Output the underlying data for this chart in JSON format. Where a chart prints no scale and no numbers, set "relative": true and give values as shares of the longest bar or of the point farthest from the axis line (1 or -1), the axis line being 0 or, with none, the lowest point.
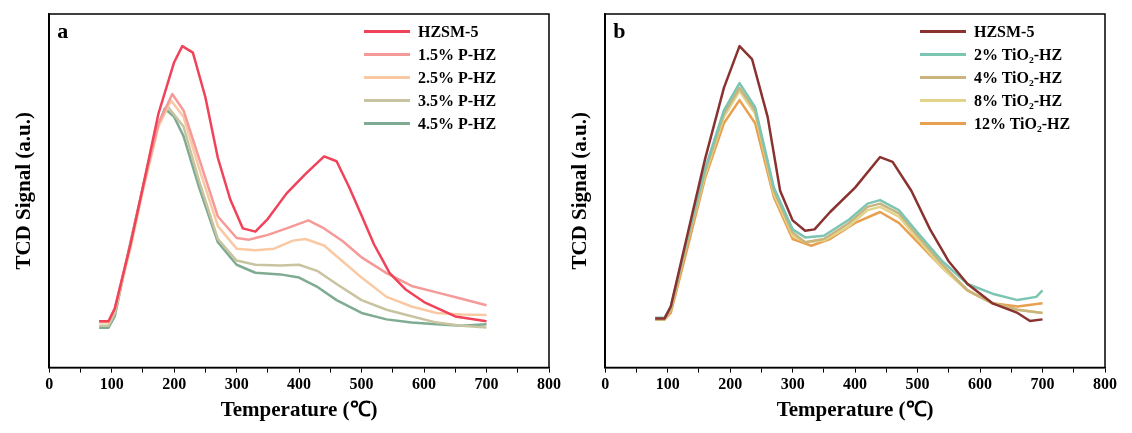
{
  "chart_data": [
    {
      "type": "line",
      "relative": true,
      "xlabel": "Temperature (℃)",
      "ylabel": "TCD Signal (a.u.)",
      "annotations": [
        "a"
      ],
      "xlim": [
        0,
        800
      ],
      "xticks": [
        0,
        {
          "value": 50,
          "label": null
        },
        100,
        {
          "value": 150,
          "label": null
        },
        200,
        {
          "value": 250,
          "label": null
        },
        300,
        {
          "value": 350,
          "label": null
        },
        400,
        {
          "value": 450,
          "label": null
        },
        500,
        {
          "value": 550,
          "label": null
        },
        600,
        {
          "value": 650,
          "label": null
        },
        700,
        {
          "value": 750,
          "label": null
        },
        800
      ],
      "grid": false,
      "legend": "top right",
      "marker": "none",
      "line_style": "solid",
      "series": [
        {
          "name": "HZSM-5",
          "color": "#f0435a",
          "x": [
            80,
            95,
            105,
            130,
            150,
            175,
            200,
            213,
            230,
            250,
            270,
            290,
            310,
            330,
            350,
            380,
            410,
            440,
            460,
            480,
            500,
            520,
            545,
            570,
            600,
            650,
            700
          ],
          "values": [
            0.144,
            0.144,
            0.184,
            0.383,
            0.562,
            0.791,
            0.95,
            1.0,
            0.98,
            0.841,
            0.652,
            0.522,
            0.433,
            0.423,
            0.463,
            0.542,
            0.602,
            0.657,
            0.642,
            0.562,
            0.473,
            0.383,
            0.294,
            0.244,
            0.204,
            0.159,
            0.144
          ]
        },
        {
          "name": "1.5% P-HZ",
          "color": "#f59a98",
          "x": [
            80,
            95,
            105,
            130,
            150,
            175,
            197,
            215,
            240,
            270,
            300,
            320,
            350,
            380,
            415,
            440,
            470,
            500,
            540,
            580,
            620,
            660,
            700
          ],
          "values": [
            0.144,
            0.144,
            0.184,
            0.383,
            0.56,
            0.76,
            0.851,
            0.8,
            0.65,
            0.47,
            0.403,
            0.398,
            0.413,
            0.433,
            0.458,
            0.433,
            0.393,
            0.343,
            0.294,
            0.254,
            0.234,
            0.214,
            0.194
          ]
        },
        {
          "name": "2.5% P-HZ",
          "color": "#f9c9a3",
          "x": [
            80,
            95,
            105,
            130,
            150,
            175,
            195,
            215,
            240,
            270,
            300,
            330,
            360,
            390,
            410,
            440,
            470,
            500,
            540,
            580,
            620,
            660,
            700
          ],
          "values": [
            0.14,
            0.14,
            0.18,
            0.37,
            0.55,
            0.75,
            0.831,
            0.78,
            0.62,
            0.44,
            0.37,
            0.365,
            0.37,
            0.395,
            0.4,
            0.38,
            0.33,
            0.28,
            0.22,
            0.19,
            0.17,
            0.165,
            0.164
          ]
        },
        {
          "name": "3.5% P-HZ",
          "color": "#c8c4a0",
          "x": [
            80,
            95,
            105,
            130,
            150,
            170,
            190,
            215,
            240,
            270,
            300,
            330,
            370,
            400,
            430,
            460,
            500,
            540,
            580,
            620,
            660,
            700
          ],
          "values": [
            0.13,
            0.13,
            0.17,
            0.38,
            0.56,
            0.74,
            0.811,
            0.75,
            0.58,
            0.4,
            0.333,
            0.32,
            0.318,
            0.32,
            0.3,
            0.26,
            0.21,
            0.18,
            0.16,
            0.14,
            0.13,
            0.125
          ]
        },
        {
          "name": "4.5% P-HZ",
          "color": "#7fab93",
          "x": [
            80,
            95,
            105,
            130,
            150,
            170,
            185,
            200,
            215,
            240,
            270,
            300,
            330,
            370,
            400,
            430,
            460,
            500,
            540,
            580,
            620,
            660,
            700
          ],
          "values": [
            0.124,
            0.124,
            0.16,
            0.39,
            0.56,
            0.73,
            0.806,
            0.78,
            0.72,
            0.56,
            0.39,
            0.32,
            0.295,
            0.29,
            0.28,
            0.25,
            0.21,
            0.17,
            0.15,
            0.14,
            0.135,
            0.13,
            0.135
          ]
        }
      ]
    },
    {
      "type": "line",
      "relative": true,
      "xlabel": "Temperature (℃)",
      "ylabel": "TCD Signal (a.u.)",
      "annotations": [
        "b"
      ],
      "xlim": [
        0,
        800
      ],
      "xticks": [
        0,
        {
          "value": 50,
          "label": null
        },
        100,
        {
          "value": 150,
          "label": null
        },
        200,
        {
          "value": 250,
          "label": null
        },
        300,
        {
          "value": 350,
          "label": null
        },
        400,
        {
          "value": 450,
          "label": null
        },
        500,
        {
          "value": 550,
          "label": null
        },
        600,
        {
          "value": 650,
          "label": null
        },
        700,
        {
          "value": 750,
          "label": null
        },
        800
      ],
      "grid": false,
      "legend": "top right",
      "marker": "none",
      "line_style": "solid",
      "series": [
        {
          "name": "HZSM-5",
          "color": "#8a3230",
          "x": [
            80,
            95,
            105,
            130,
            160,
            190,
            215,
            235,
            260,
            280,
            300,
            320,
            335,
            360,
            400,
            440,
            460,
            490,
            520,
            550,
            580,
            620,
            660,
            680,
            700
          ],
          "values": [
            0.153,
            0.153,
            0.19,
            0.4,
            0.65,
            0.87,
            1.0,
            0.96,
            0.78,
            0.55,
            0.458,
            0.426,
            0.43,
            0.484,
            0.56,
            0.655,
            0.64,
            0.55,
            0.43,
            0.33,
            0.26,
            0.2,
            0.17,
            0.145,
            0.15
          ]
        },
        {
          "name": "2% TiO₂-HZ",
          "color": "#7dc5b3",
          "x": [
            80,
            95,
            105,
            130,
            160,
            190,
            215,
            240,
            270,
            300,
            320,
            350,
            390,
            420,
            440,
            470,
            500,
            540,
            580,
            620,
            660,
            690,
            700
          ],
          "values": [
            0.155,
            0.155,
            0.19,
            0.39,
            0.62,
            0.8,
            0.885,
            0.81,
            0.56,
            0.43,
            0.405,
            0.41,
            0.46,
            0.51,
            0.521,
            0.49,
            0.42,
            0.33,
            0.26,
            0.23,
            0.21,
            0.22,
            0.24
          ]
        },
        {
          "name": "4% TiO₂-HZ",
          "color": "#c8b47c",
          "x": [
            80,
            95,
            105,
            130,
            160,
            190,
            215,
            240,
            270,
            300,
            320,
            350,
            390,
            420,
            440,
            470,
            500,
            540,
            580,
            620,
            660,
            700
          ],
          "values": [
            0.15,
            0.15,
            0.18,
            0.38,
            0.61,
            0.79,
            0.87,
            0.8,
            0.55,
            0.42,
            0.39,
            0.4,
            0.45,
            0.5,
            0.51,
            0.48,
            0.41,
            0.32,
            0.24,
            0.2,
            0.18,
            0.17
          ]
        },
        {
          "name": "8% TiO₂-HZ",
          "color": "#e2d38a",
          "x": [
            80,
            95,
            105,
            130,
            160,
            190,
            215,
            240,
            270,
            300,
            320,
            350,
            390,
            420,
            440,
            470,
            500,
            540,
            580,
            620,
            660,
            700
          ],
          "values": [
            0.15,
            0.15,
            0.18,
            0.38,
            0.6,
            0.78,
            0.86,
            0.79,
            0.54,
            0.41,
            0.39,
            0.395,
            0.44,
            0.49,
            0.5,
            0.47,
            0.4,
            0.31,
            0.24,
            0.2,
            0.18,
            0.17
          ]
        },
        {
          "name": "12% TiO₂-HZ",
          "color": "#e8a050",
          "x": [
            80,
            95,
            105,
            130,
            160,
            190,
            215,
            240,
            270,
            300,
            330,
            360,
            400,
            440,
            470,
            500,
            540,
            580,
            620,
            660,
            700
          ],
          "values": [
            0.15,
            0.15,
            0.17,
            0.36,
            0.59,
            0.76,
            0.832,
            0.76,
            0.53,
            0.4,
            0.379,
            0.4,
            0.45,
            0.484,
            0.45,
            0.39,
            0.31,
            0.24,
            0.2,
            0.19,
            0.2
          ]
        }
      ]
    }
  ]
}
